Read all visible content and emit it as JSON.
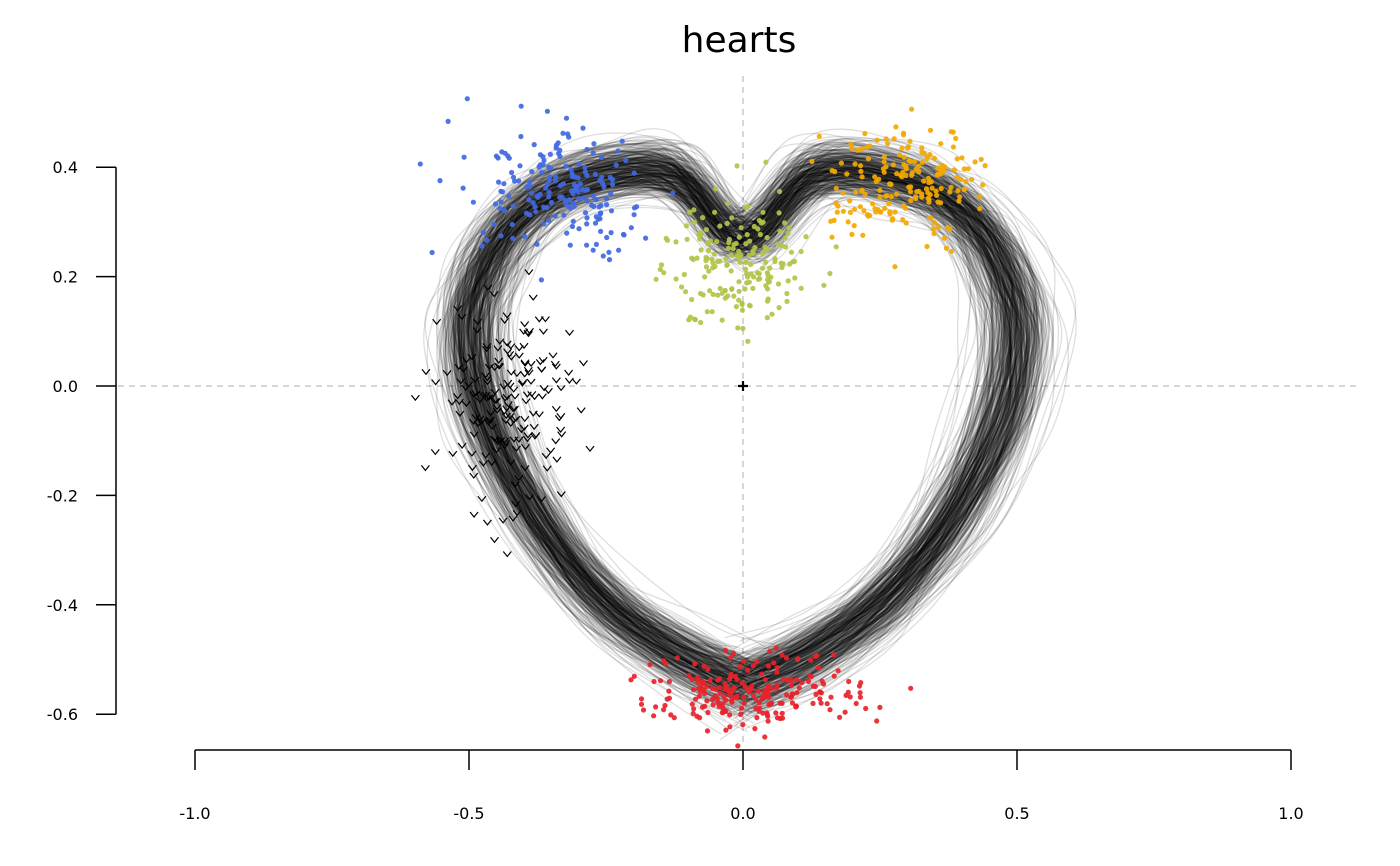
{
  "chart_data": {
    "type": "line",
    "title": "hearts",
    "xlabel": "",
    "ylabel": "",
    "xlim": [
      -1.0,
      1.0
    ],
    "ylim": [
      -0.6,
      0.4
    ],
    "x_ticks": [
      "-1.0",
      "-0.5",
      "0.0",
      "0.5",
      "1.0"
    ],
    "y_ticks": [
      "0.4",
      "0.2",
      "0.0",
      "-0.2",
      "-0.4",
      "-0.6"
    ],
    "x_tick_values": [
      -1.0,
      -0.5,
      0.0,
      0.5,
      1.0
    ],
    "y_tick_values": [
      0.4,
      0.2,
      0.0,
      -0.2,
      -0.4,
      -0.6
    ],
    "reference_lines": {
      "x": 0.0,
      "y": 0.0,
      "style": "dashed",
      "color": "#c8c8c8"
    },
    "origin_marker": {
      "x": 0.0,
      "y": 0.0,
      "symbol": "+"
    },
    "grid": false,
    "legend": "none",
    "trajectory_count": 360,
    "trajectory_color": "#000000",
    "trajectory_opacity": 0.13,
    "heart_path": [
      [
        0.0,
        -0.545
      ],
      [
        0.12,
        -0.49
      ],
      [
        0.26,
        -0.39
      ],
      [
        0.38,
        -0.24
      ],
      [
        0.47,
        -0.06
      ],
      [
        0.5,
        0.1
      ],
      [
        0.47,
        0.22
      ],
      [
        0.4,
        0.32
      ],
      [
        0.29,
        0.38
      ],
      [
        0.13,
        0.39
      ],
      [
        0.0,
        0.27
      ],
      [
        -0.13,
        0.39
      ],
      [
        -0.29,
        0.38
      ],
      [
        -0.4,
        0.32
      ],
      [
        -0.47,
        0.22
      ],
      [
        -0.5,
        0.1
      ],
      [
        -0.47,
        -0.06
      ],
      [
        -0.38,
        -0.24
      ],
      [
        -0.26,
        -0.39
      ],
      [
        -0.12,
        -0.49
      ],
      [
        0.0,
        -0.545
      ]
    ],
    "point_clusters": [
      {
        "color": "#4169e1",
        "center": [
          -0.32,
          0.35
        ],
        "spread": [
          0.085,
          0.055
        ],
        "count": 190,
        "marker": "dot"
      },
      {
        "color": "#f2a900",
        "center": [
          0.3,
          0.37
        ],
        "spread": [
          0.07,
          0.05
        ],
        "count": 190,
        "marker": "dot"
      },
      {
        "color": "#b3c348",
        "center": [
          -0.01,
          0.23
        ],
        "spread": [
          0.065,
          0.055
        ],
        "count": 190,
        "marker": "dot"
      },
      {
        "color": "#e8232a",
        "center": [
          0.02,
          -0.56
        ],
        "spread": [
          0.1,
          0.035
        ],
        "count": 220,
        "marker": "dot"
      },
      {
        "color": "#000000",
        "center": [
          -0.43,
          -0.03
        ],
        "spread": [
          0.06,
          0.09
        ],
        "count": 190,
        "marker": "chevron"
      }
    ]
  }
}
